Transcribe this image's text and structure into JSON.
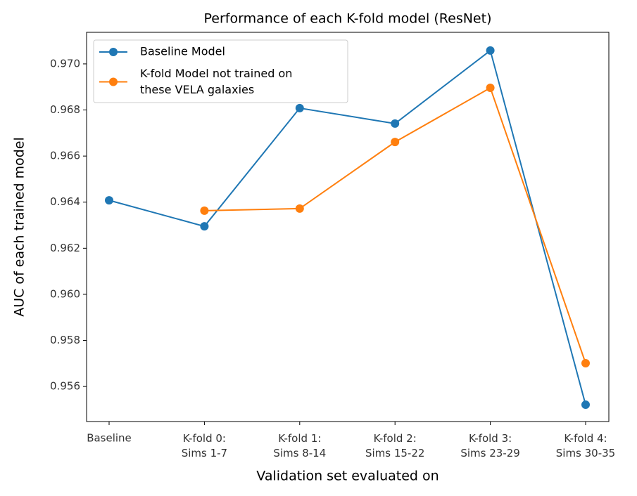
{
  "chart_data": {
    "type": "line",
    "title": "Performance of each K-fold model (ResNet)",
    "x_label": "Validation set evaluated on",
    "y_label": "AUC of each trained model",
    "categories": [
      "Baseline",
      "K-fold 0:\nSims 1-7",
      "K-fold 1:\nSims 8-14",
      "K-fold 2:\nSims 15-22",
      "K-fold 3:\nSims 23-29",
      "K-fold 4:\nSims 30-35"
    ],
    "series": [
      {
        "name": "Baseline Model",
        "color": "#1f77b4",
        "values": [
          0.96408,
          0.96295,
          0.96808,
          0.96741,
          0.97058,
          0.95521
        ]
      },
      {
        "name": "K-fold Model not trained on\nthese VELA galaxies",
        "color": "#ff7f0e",
        "values": [
          null,
          0.96363,
          0.96372,
          0.96661,
          0.96896,
          0.95701
        ]
      }
    ],
    "ylim": [
      0.95448,
      0.97137
    ],
    "yticks": [
      {
        "value": 0.956,
        "label": "0.956"
      },
      {
        "value": 0.958,
        "label": "0.958"
      },
      {
        "value": 0.96,
        "label": "0.960"
      },
      {
        "value": 0.962,
        "label": "0.962"
      },
      {
        "value": 0.964,
        "label": "0.964"
      },
      {
        "value": 0.966,
        "label": "0.966"
      },
      {
        "value": 0.968,
        "label": "0.968"
      },
      {
        "value": 0.97,
        "label": "0.970"
      }
    ],
    "legend": "upper left",
    "grid": false
  }
}
